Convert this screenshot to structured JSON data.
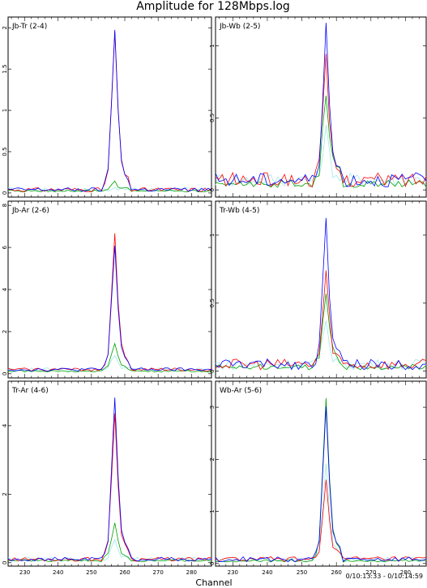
{
  "chart_data": {
    "title": "Amplitude for 128Mbps.log",
    "xlabel": "Channel",
    "timestamp": "0/10:13:33 - 0/10:14:59",
    "colors": {
      "red": "#ff0000",
      "blue": "#0000ff",
      "green": "#00a000",
      "cyan": "#a0e8e8"
    },
    "panels": [
      {
        "type": "line",
        "label": "Jb-Tr (2-4)",
        "xlim": [
          225,
          286
        ],
        "ylim": [
          -0.05,
          2.13
        ],
        "xticks": [
          "230",
          "240",
          "250",
          "260",
          "270",
          "280"
        ],
        "yticks": [
          "0",
          "0.5",
          "1",
          "1.5",
          "2"
        ],
        "peak": {
          "x": 257,
          "red": 1.95,
          "blue": 1.97,
          "green": 0.12
        },
        "baseline": 0.04,
        "noise": 0.025
      },
      {
        "type": "line",
        "label": "Jb-Wb (2-5)",
        "xlim": [
          225,
          286
        ],
        "ylim": [
          -0.05,
          1.2
        ],
        "xticks": [
          "230",
          "240",
          "250",
          "260",
          "270",
          "280"
        ],
        "yticks": [
          "0",
          "0.5",
          "1"
        ],
        "peak": {
          "x": 257,
          "red": 0.9,
          "blue": 1.11,
          "green": 0.7
        },
        "baseline": 0.07,
        "noise": 0.05
      },
      {
        "type": "line",
        "label": "Jb-Ar (2-6)",
        "xlim": [
          225,
          286
        ],
        "ylim": [
          -0.2,
          8.2
        ],
        "xticks": [
          "230",
          "240",
          "250",
          "260",
          "270",
          "280"
        ],
        "yticks": [
          "0",
          "2",
          "4",
          "6",
          "8"
        ],
        "peak": {
          "x": 257,
          "red": 6.7,
          "blue": 6.1,
          "green": 1.5
        },
        "baseline": 0.2,
        "noise": 0.08
      },
      {
        "type": "line",
        "label": "Tr-Wb (4-5)",
        "xlim": [
          225,
          286
        ],
        "ylim": [
          -0.05,
          1.25
        ],
        "xticks": [
          "230",
          "240",
          "250",
          "260",
          "270",
          "280"
        ],
        "yticks": [
          "0",
          "0.5",
          "1"
        ],
        "peak": {
          "x": 257,
          "red": 0.72,
          "blue": 1.1,
          "green": 0.6
        },
        "baseline": 0.05,
        "noise": 0.04
      },
      {
        "type": "line",
        "label": "Tr-Ar (4-6)",
        "xlim": [
          225,
          286
        ],
        "ylim": [
          -0.1,
          5.3
        ],
        "xticks": [
          "230",
          "240",
          "250",
          "260",
          "270",
          "280"
        ],
        "yticks": [
          "0",
          "2",
          "4"
        ],
        "peak": {
          "x": 257,
          "red": 4.4,
          "blue": 4.85,
          "green": 1.2
        },
        "baseline": 0.1,
        "noise": 0.06
      },
      {
        "type": "line",
        "label": "Wb-Ar (5-6)",
        "xlim": [
          225,
          286
        ],
        "ylim": [
          -0.05,
          3.5
        ],
        "xticks": [
          "230",
          "240",
          "250",
          "260",
          "270",
          "280"
        ],
        "yticks": [
          "0",
          "1",
          "2",
          "3"
        ],
        "peak": {
          "x": 257,
          "red": 1.6,
          "blue": 3.0,
          "green": 3.2
        },
        "baseline": 0.08,
        "noise": 0.05
      }
    ]
  }
}
